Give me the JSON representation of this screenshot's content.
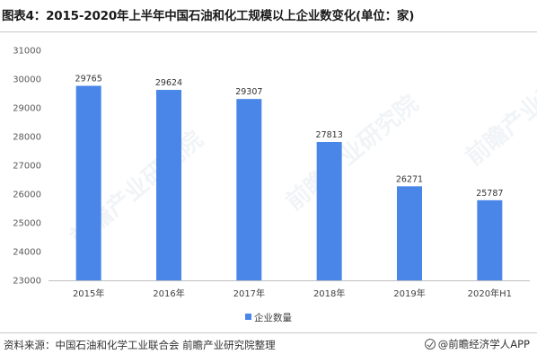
{
  "title": "图表4：2015-2020年上半年中国石油和化工规模以上企业数变化(单位：家)",
  "source": "资料来源：中国石油和化学工业联合会 前瞻产业研究院整理",
  "brand": "@前瞻经济学人APP",
  "watermark": "前瞻产业研究院",
  "colors": {
    "bar": "#4a86e8"
  },
  "chart_data": {
    "type": "bar",
    "categories": [
      "2015年",
      "2016年",
      "2017年",
      "2018年",
      "2019年",
      "2020年H1"
    ],
    "series": [
      {
        "name": "企业数量",
        "values": [
          29765,
          29624,
          29307,
          27813,
          26271,
          25787
        ]
      }
    ],
    "ylim": [
      23000,
      31000
    ],
    "yticks": [
      23000,
      24000,
      25000,
      26000,
      27000,
      28000,
      29000,
      30000,
      31000
    ],
    "legend": "bottom-center",
    "grid": false
  }
}
